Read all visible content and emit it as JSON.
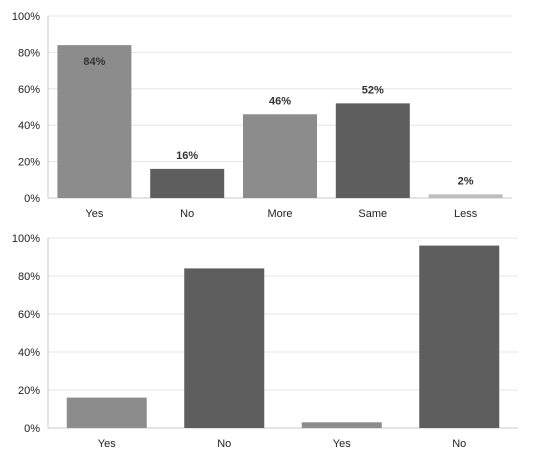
{
  "chart_data": [
    {
      "type": "bar",
      "categories": [
        "Yes",
        "No",
        "More",
        "Same",
        "Less"
      ],
      "values": [
        84,
        16,
        46,
        52,
        2
      ],
      "data_labels": [
        "84%",
        "16%",
        "46%",
        "52%",
        "2%"
      ],
      "bar_colors": [
        "#8c8c8c",
        "#5e5e5e",
        "#8c8c8c",
        "#5e5e5e",
        "#bdbdbd"
      ],
      "y_ticks": [
        "0%",
        "20%",
        "40%",
        "60%",
        "80%",
        "100%"
      ],
      "ylim": [
        0,
        100
      ],
      "grid": true
    },
    {
      "type": "bar",
      "categories": [
        "Yes",
        "No",
        "Yes",
        "No"
      ],
      "values": [
        16,
        84,
        3,
        96
      ],
      "data_labels": [],
      "bar_colors": [
        "#8c8c8c",
        "#5e5e5e",
        "#8c8c8c",
        "#5e5e5e"
      ],
      "y_ticks": [
        "0%",
        "20%",
        "40%",
        "60%",
        "80%",
        "100%"
      ],
      "ylim": [
        0,
        100
      ],
      "grid": true
    }
  ]
}
